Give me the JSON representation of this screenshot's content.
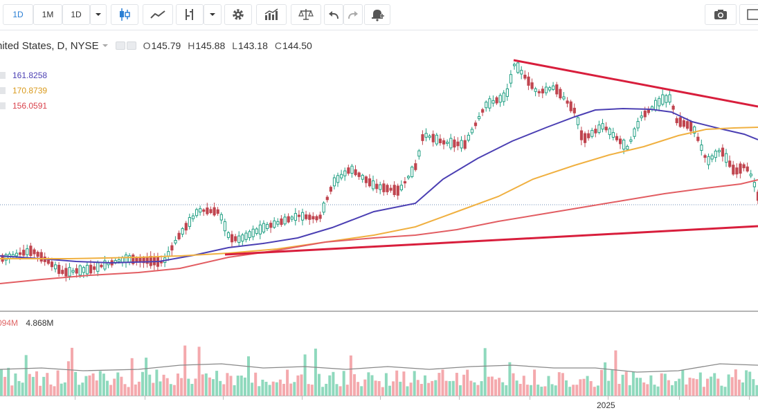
{
  "toolbar": {
    "interval_1d": "1D",
    "interval_1m": "1M",
    "interval_selector": "1D"
  },
  "legend": {
    "symbol_fragment": "nited States, D, NYSE",
    "open_label": "O",
    "open": "145.79",
    "high_label": "H",
    "high": "145.88",
    "low_label": "L",
    "low": "143.18",
    "close_label": "C",
    "close": "144.50"
  },
  "moving_averages": [
    {
      "value": "161.8258",
      "color": "#4b3fb3"
    },
    {
      "value": "170.8739",
      "color": "#e0a020"
    },
    {
      "value": "156.0591",
      "color": "#d9414b"
    }
  ],
  "volume_legend": {
    "value_a": "094M",
    "value_b": "4.868M"
  },
  "x_axis": {
    "year_label": "2025"
  },
  "colors": {
    "bull": "#1f9e82",
    "bear": "#c0454f",
    "vol_bull": "#8fd9bd",
    "vol_bear": "#f4a9ad",
    "trendline": "#d81e3c",
    "ma_fast": "#4b3fb3",
    "ma_mid": "#f0b040",
    "ma_slow": "#e25d62"
  },
  "icons": [
    "candlestick-icon",
    "line-chart-icon",
    "compare-icon",
    "settings-gear-icon",
    "indicators-icon",
    "balance-scale-icon",
    "undo-icon",
    "redo-icon",
    "alert-bell-icon",
    "camera-icon",
    "fullscreen-icon"
  ]
}
